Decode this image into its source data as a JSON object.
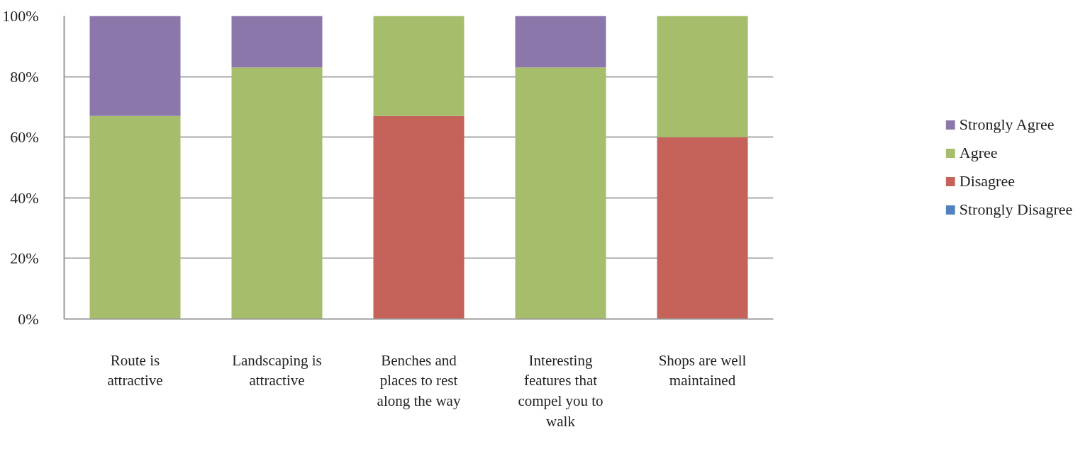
{
  "chart_data": {
    "type": "bar",
    "stacked": true,
    "categories": [
      "Route is attractive",
      "Landscaping is attractive",
      "Benches and places to rest along the way",
      "Interesting features that compel you to walk",
      "Shops are well maintained"
    ],
    "series": [
      {
        "name": "Strongly Disagree",
        "color": "#4f81bd",
        "values": [
          0,
          0,
          0,
          0,
          0
        ]
      },
      {
        "name": "Disagree",
        "color": "#c5625a",
        "values": [
          0,
          0,
          67,
          0,
          60
        ]
      },
      {
        "name": "Agree",
        "color": "#a6bd6b",
        "values": [
          67,
          83,
          33,
          83,
          40
        ]
      },
      {
        "name": "Strongly Agree",
        "color": "#8c77ab",
        "values": [
          33,
          17,
          0,
          17,
          0
        ]
      }
    ],
    "ylim": [
      0,
      100
    ],
    "yticks": [
      {
        "value": 0,
        "label": "0%"
      },
      {
        "value": 20,
        "label": "20%"
      },
      {
        "value": 40,
        "label": "40%"
      },
      {
        "value": 60,
        "label": "60%"
      },
      {
        "value": 80,
        "label": "80%"
      },
      {
        "value": 100,
        "label": "100%"
      }
    ],
    "grid": "y",
    "legend": "right"
  }
}
